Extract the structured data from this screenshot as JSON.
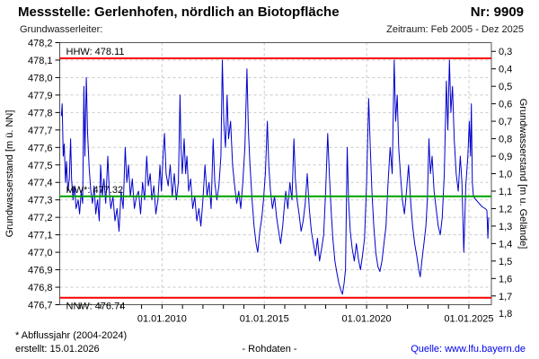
{
  "header": {
    "title": "Messstelle: Gerlenhofen, nördlich an Biotopfläche",
    "station_no": "Nr: 9909",
    "aquifer_label": "Grundwasserleiter:",
    "period_label": "Zeitraum: Feb 2005 - Dez 2025"
  },
  "footer": {
    "footnote": "* Abflussjahr (2004-2024)",
    "created": "erstellt: 15.01.2026",
    "data_type": "- Rohdaten -",
    "source": "Quelle: www.lfu.bayern.de",
    "source_color": "#0000ee"
  },
  "chart_data": {
    "type": "line",
    "title": "",
    "xlabel": "",
    "ylabel_left": "Grundwasserstand [m ü. NN]",
    "ylabel_right": "Grundwasserstand [m u. Gelände]",
    "ylim_left": [
      476.7,
      478.2
    ],
    "yticks_left": [
      478.2,
      478.1,
      478.0,
      477.9,
      477.8,
      477.7,
      477.6,
      477.5,
      477.4,
      477.3,
      477.2,
      477.1,
      477.0,
      476.9,
      476.8,
      476.7
    ],
    "yticks_right": [
      0.3,
      0.4,
      0.5,
      0.6,
      0.7,
      0.8,
      0.9,
      1.0,
      1.1,
      1.2,
      1.3,
      1.4,
      1.5,
      1.6,
      1.7,
      1.8
    ],
    "ground_elevation": 478.45,
    "xlim": [
      2005.0,
      2026.1
    ],
    "xticks_major": [
      {
        "t": 2010.0,
        "label": "01.01.2010"
      },
      {
        "t": 2015.0,
        "label": "01.01.2015"
      },
      {
        "t": 2020.0,
        "label": "01.01.2020"
      },
      {
        "t": 2025.0,
        "label": "01.01.2025"
      }
    ],
    "xticks_minor_years": [
      2006,
      2007,
      2008,
      2009,
      2010,
      2011,
      2012,
      2013,
      2014,
      2015,
      2016,
      2017,
      2018,
      2019,
      2020,
      2021,
      2022,
      2023,
      2024,
      2025
    ],
    "grid": true,
    "grid_color": "#c8c8c8",
    "frame_color": "#555555",
    "reference_lines": [
      {
        "name": "HHW",
        "label": "HHW: 478.11",
        "value": 478.11,
        "color": "#ff0000",
        "label_position": "above"
      },
      {
        "name": "MW",
        "label": "MW*: 477.32",
        "value": 477.32,
        "color": "#00a000",
        "label_position": "above"
      },
      {
        "name": "NNW",
        "label": "NNW: 476.74",
        "value": 476.74,
        "color": "#ff0000",
        "label_position": "below"
      }
    ],
    "series": [
      {
        "name": "Grundwasserstand Rohdaten",
        "color": "#0000cc",
        "points": [
          [
            2005.08,
            477.78
          ],
          [
            2005.12,
            477.85
          ],
          [
            2005.17,
            477.55
          ],
          [
            2005.22,
            477.62
          ],
          [
            2005.28,
            477.4
          ],
          [
            2005.33,
            477.52
          ],
          [
            2005.4,
            477.35
          ],
          [
            2005.47,
            477.42
          ],
          [
            2005.53,
            477.65
          ],
          [
            2005.58,
            477.42
          ],
          [
            2005.65,
            477.3
          ],
          [
            2005.72,
            477.38
          ],
          [
            2005.8,
            477.25
          ],
          [
            2005.9,
            477.3
          ],
          [
            2005.97,
            477.22
          ],
          [
            2006.05,
            477.35
          ],
          [
            2006.12,
            477.28
          ],
          [
            2006.18,
            477.95
          ],
          [
            2006.23,
            477.55
          ],
          [
            2006.3,
            478.0
          ],
          [
            2006.36,
            477.68
          ],
          [
            2006.44,
            477.48
          ],
          [
            2006.52,
            477.35
          ],
          [
            2006.6,
            477.28
          ],
          [
            2006.68,
            477.38
          ],
          [
            2006.76,
            477.22
          ],
          [
            2006.85,
            477.3
          ],
          [
            2006.93,
            477.18
          ],
          [
            2007.0,
            477.5
          ],
          [
            2007.08,
            477.32
          ],
          [
            2007.16,
            477.42
          ],
          [
            2007.25,
            477.28
          ],
          [
            2007.35,
            477.55
          ],
          [
            2007.42,
            477.35
          ],
          [
            2007.5,
            477.25
          ],
          [
            2007.6,
            477.32
          ],
          [
            2007.7,
            477.18
          ],
          [
            2007.8,
            477.25
          ],
          [
            2007.9,
            477.12
          ],
          [
            2008.0,
            477.35
          ],
          [
            2008.1,
            477.25
          ],
          [
            2008.2,
            477.6
          ],
          [
            2008.28,
            477.4
          ],
          [
            2008.36,
            477.5
          ],
          [
            2008.45,
            477.32
          ],
          [
            2008.55,
            477.42
          ],
          [
            2008.65,
            477.25
          ],
          [
            2008.75,
            477.32
          ],
          [
            2008.85,
            477.35
          ],
          [
            2008.95,
            477.22
          ],
          [
            2009.05,
            477.4
          ],
          [
            2009.15,
            477.3
          ],
          [
            2009.25,
            477.55
          ],
          [
            2009.33,
            477.38
          ],
          [
            2009.42,
            477.45
          ],
          [
            2009.5,
            477.3
          ],
          [
            2009.6,
            477.38
          ],
          [
            2009.7,
            477.22
          ],
          [
            2009.8,
            477.3
          ],
          [
            2009.9,
            477.5
          ],
          [
            2009.97,
            477.35
          ],
          [
            2010.05,
            477.55
          ],
          [
            2010.12,
            477.68
          ],
          [
            2010.2,
            477.45
          ],
          [
            2010.3,
            477.38
          ],
          [
            2010.4,
            477.5
          ],
          [
            2010.5,
            477.32
          ],
          [
            2010.6,
            477.45
          ],
          [
            2010.7,
            477.3
          ],
          [
            2010.8,
            477.4
          ],
          [
            2010.88,
            477.9
          ],
          [
            2010.93,
            477.6
          ],
          [
            2010.99,
            477.45
          ],
          [
            2011.08,
            477.65
          ],
          [
            2011.15,
            477.45
          ],
          [
            2011.22,
            477.55
          ],
          [
            2011.3,
            477.35
          ],
          [
            2011.4,
            477.42
          ],
          [
            2011.5,
            477.25
          ],
          [
            2011.6,
            477.32
          ],
          [
            2011.7,
            477.18
          ],
          [
            2011.8,
            477.25
          ],
          [
            2011.9,
            477.15
          ],
          [
            2012.0,
            477.3
          ],
          [
            2012.1,
            477.5
          ],
          [
            2012.2,
            477.32
          ],
          [
            2012.3,
            477.4
          ],
          [
            2012.4,
            477.25
          ],
          [
            2012.5,
            477.65
          ],
          [
            2012.58,
            477.4
          ],
          [
            2012.68,
            477.3
          ],
          [
            2012.78,
            477.38
          ],
          [
            2012.88,
            477.55
          ],
          [
            2012.95,
            478.1
          ],
          [
            2013.02,
            477.75
          ],
          [
            2013.1,
            477.6
          ],
          [
            2013.18,
            477.9
          ],
          [
            2013.25,
            477.65
          ],
          [
            2013.35,
            477.75
          ],
          [
            2013.45,
            477.5
          ],
          [
            2013.55,
            477.38
          ],
          [
            2013.65,
            477.28
          ],
          [
            2013.75,
            477.35
          ],
          [
            2013.85,
            477.25
          ],
          [
            2013.95,
            477.4
          ],
          [
            2014.05,
            477.6
          ],
          [
            2014.15,
            478.05
          ],
          [
            2014.22,
            477.7
          ],
          [
            2014.3,
            477.5
          ],
          [
            2014.4,
            477.3
          ],
          [
            2014.5,
            477.15
          ],
          [
            2014.6,
            477.05
          ],
          [
            2014.68,
            477.0
          ],
          [
            2014.78,
            477.12
          ],
          [
            2014.88,
            477.2
          ],
          [
            2014.96,
            477.3
          ],
          [
            2015.05,
            477.45
          ],
          [
            2015.15,
            477.75
          ],
          [
            2015.22,
            477.5
          ],
          [
            2015.3,
            477.35
          ],
          [
            2015.4,
            477.25
          ],
          [
            2015.5,
            477.32
          ],
          [
            2015.6,
            477.2
          ],
          [
            2015.7,
            477.12
          ],
          [
            2015.8,
            477.05
          ],
          [
            2015.9,
            477.15
          ],
          [
            2015.97,
            477.25
          ],
          [
            2016.05,
            477.35
          ],
          [
            2016.15,
            477.25
          ],
          [
            2016.25,
            477.4
          ],
          [
            2016.35,
            477.3
          ],
          [
            2016.45,
            477.65
          ],
          [
            2016.52,
            477.42
          ],
          [
            2016.6,
            477.3
          ],
          [
            2016.7,
            477.22
          ],
          [
            2016.8,
            477.12
          ],
          [
            2016.9,
            477.18
          ],
          [
            2017.0,
            477.28
          ],
          [
            2017.1,
            477.45
          ],
          [
            2017.2,
            477.25
          ],
          [
            2017.3,
            477.12
          ],
          [
            2017.4,
            477.05
          ],
          [
            2017.5,
            476.98
          ],
          [
            2017.6,
            477.08
          ],
          [
            2017.7,
            476.95
          ],
          [
            2017.8,
            477.02
          ],
          [
            2017.9,
            477.1
          ],
          [
            2018.0,
            477.35
          ],
          [
            2018.1,
            477.68
          ],
          [
            2018.18,
            477.45
          ],
          [
            2018.26,
            477.25
          ],
          [
            2018.35,
            477.08
          ],
          [
            2018.45,
            476.95
          ],
          [
            2018.55,
            476.88
          ],
          [
            2018.65,
            476.82
          ],
          [
            2018.75,
            476.78
          ],
          [
            2018.82,
            476.76
          ],
          [
            2018.9,
            476.82
          ],
          [
            2018.97,
            476.9
          ],
          [
            2019.05,
            477.6
          ],
          [
            2019.12,
            477.3
          ],
          [
            2019.2,
            477.12
          ],
          [
            2019.3,
            477.02
          ],
          [
            2019.4,
            476.95
          ],
          [
            2019.5,
            477.05
          ],
          [
            2019.6,
            476.96
          ],
          [
            2019.7,
            476.9
          ],
          [
            2019.8,
            476.98
          ],
          [
            2019.9,
            477.08
          ],
          [
            2020.0,
            477.4
          ],
          [
            2020.1,
            477.88
          ],
          [
            2020.18,
            477.6
          ],
          [
            2020.26,
            477.35
          ],
          [
            2020.35,
            477.15
          ],
          [
            2020.45,
            477.0
          ],
          [
            2020.55,
            476.92
          ],
          [
            2020.65,
            476.89
          ],
          [
            2020.75,
            476.95
          ],
          [
            2020.85,
            477.05
          ],
          [
            2020.95,
            477.15
          ],
          [
            2021.05,
            477.4
          ],
          [
            2021.15,
            477.6
          ],
          [
            2021.25,
            477.45
          ],
          [
            2021.35,
            478.1
          ],
          [
            2021.42,
            477.75
          ],
          [
            2021.5,
            477.9
          ],
          [
            2021.57,
            477.6
          ],
          [
            2021.65,
            477.45
          ],
          [
            2021.75,
            477.3
          ],
          [
            2021.85,
            477.22
          ],
          [
            2021.95,
            477.35
          ],
          [
            2022.05,
            477.5
          ],
          [
            2022.15,
            477.3
          ],
          [
            2022.25,
            477.15
          ],
          [
            2022.35,
            477.05
          ],
          [
            2022.45,
            476.98
          ],
          [
            2022.55,
            476.9
          ],
          [
            2022.62,
            476.86
          ],
          [
            2022.7,
            476.95
          ],
          [
            2022.8,
            477.05
          ],
          [
            2022.9,
            477.15
          ],
          [
            2022.97,
            477.3
          ],
          [
            2023.05,
            477.65
          ],
          [
            2023.12,
            477.45
          ],
          [
            2023.2,
            477.55
          ],
          [
            2023.3,
            477.35
          ],
          [
            2023.4,
            477.25
          ],
          [
            2023.5,
            477.15
          ],
          [
            2023.6,
            477.1
          ],
          [
            2023.7,
            477.2
          ],
          [
            2023.8,
            477.45
          ],
          [
            2023.9,
            477.98
          ],
          [
            2023.97,
            477.7
          ],
          [
            2024.05,
            478.1
          ],
          [
            2024.12,
            477.8
          ],
          [
            2024.2,
            477.95
          ],
          [
            2024.28,
            477.65
          ],
          [
            2024.38,
            477.45
          ],
          [
            2024.48,
            477.35
          ],
          [
            2024.58,
            477.55
          ],
          [
            2024.66,
            477.4
          ],
          [
            2024.75,
            477.0
          ],
          [
            2024.85,
            477.38
          ],
          [
            2024.95,
            477.55
          ],
          [
            2025.02,
            477.75
          ],
          [
            2025.08,
            477.55
          ],
          [
            2025.12,
            477.85
          ],
          [
            2025.17,
            477.4
          ],
          [
            2025.22,
            477.32
          ],
          [
            2025.35,
            477.3
          ],
          [
            2025.5,
            477.28
          ],
          [
            2025.65,
            477.26
          ],
          [
            2025.8,
            477.25
          ],
          [
            2025.88,
            477.24
          ],
          [
            2025.93,
            477.08
          ],
          [
            2025.97,
            477.2
          ]
        ]
      }
    ]
  }
}
